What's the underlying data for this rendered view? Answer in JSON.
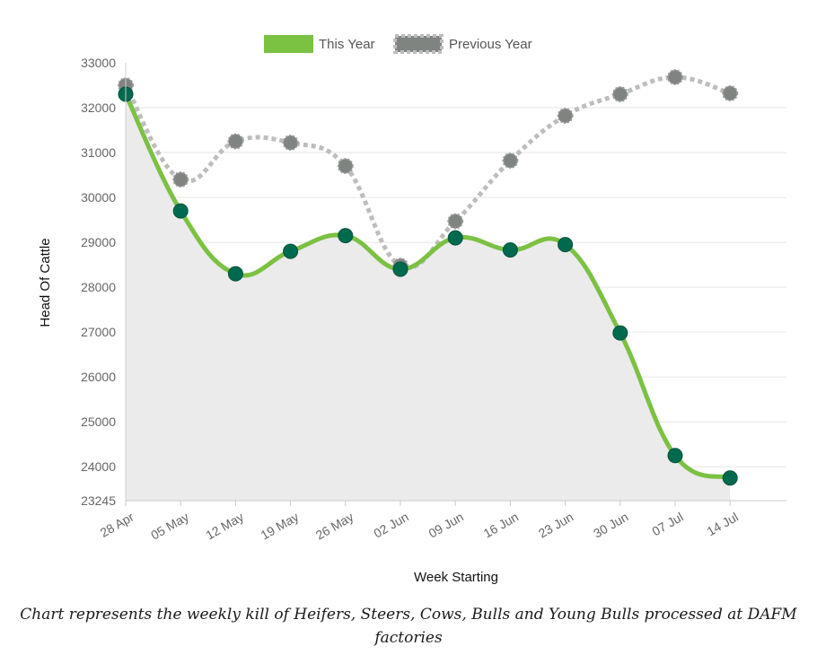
{
  "chart_data": {
    "type": "line",
    "title": "",
    "xlabel": "Week Starting",
    "ylabel": "Head Of Cattle",
    "ylim": [
      23245,
      33000
    ],
    "yticks": [
      33000,
      32000,
      31000,
      30000,
      29000,
      28000,
      27000,
      26000,
      25000,
      24000,
      23245
    ],
    "categories": [
      "28 Apr",
      "05 May",
      "12 May",
      "19 May",
      "26 May",
      "02 Jun",
      "09 Jun",
      "16 Jun",
      "23 Jun",
      "30 Jun",
      "07 Jul",
      "14 Jul"
    ],
    "grid": true,
    "legend_position": "top-center",
    "series": [
      {
        "name": "This Year",
        "values": [
          32300,
          29700,
          28300,
          28800,
          29150,
          28400,
          29100,
          28830,
          28950,
          26980,
          24250,
          23750
        ],
        "line_color": "#7bc142",
        "point_color": "#006a4e",
        "fill_color": "#ebebeb",
        "style": "solid"
      },
      {
        "name": "Previous Year",
        "values": [
          32500,
          30400,
          31250,
          31220,
          30700,
          28480,
          29470,
          30820,
          31820,
          32300,
          32680,
          32320
        ],
        "line_color": "#bdbdbd",
        "point_color": "#7f8481",
        "style": "dotted"
      }
    ]
  },
  "caption": "Chart represents the weekly kill of Heifers, Steers, Cows, Bulls and Young Bulls processed at DAFM factories"
}
